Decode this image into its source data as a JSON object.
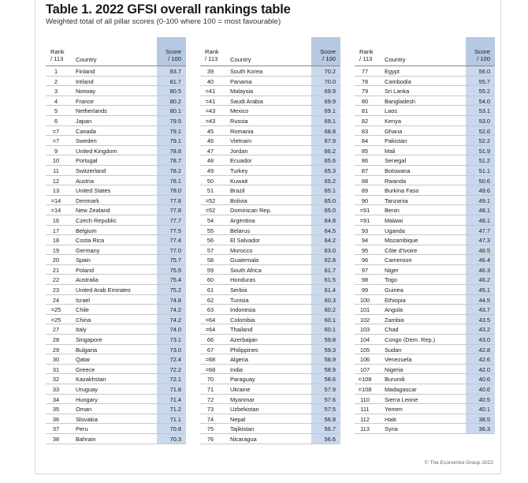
{
  "title": "Table 1. 2022 GFSI overall rankings table",
  "subtitle": "Weighted total of all pillar scores (0-100 where 100 = most favourable)",
  "headers": {
    "rank": "Rank\n/ 113",
    "country": "Country",
    "score": "Score\n/ 100"
  },
  "copyright": "© The Economist Group 2022",
  "columns": [
    [
      [
        "1",
        "Finland",
        "83.7"
      ],
      [
        "2",
        "Ireland",
        "81.7"
      ],
      [
        "3",
        "Norway",
        "80.5"
      ],
      [
        "4",
        "France",
        "80.2"
      ],
      [
        "5",
        "Netherlands",
        "80.1"
      ],
      [
        "6",
        "Japan",
        "79.5"
      ],
      [
        "=7",
        "Canada",
        "79.1"
      ],
      [
        "=7",
        "Sweden",
        "79.1"
      ],
      [
        "9",
        "United Kingdom",
        "78.8"
      ],
      [
        "10",
        "Portugal",
        "78.7"
      ],
      [
        "11",
        "Switzerland",
        "78.2"
      ],
      [
        "12",
        "Austria",
        "78.1"
      ],
      [
        "13",
        "United States",
        "78.0"
      ],
      [
        "=14",
        "Denmark",
        "77.8"
      ],
      [
        "=14",
        "New Zealand",
        "77.8"
      ],
      [
        "16",
        "Czech Republic",
        "77.7"
      ],
      [
        "17",
        "Belgium",
        "77.5"
      ],
      [
        "18",
        "Costa Rica",
        "77.4"
      ],
      [
        "19",
        "Germany",
        "77.0"
      ],
      [
        "20",
        "Spain",
        "75.7"
      ],
      [
        "21",
        "Poland",
        "75.5"
      ],
      [
        "22",
        "Australia",
        "75.4"
      ],
      [
        "23",
        "United Arab Emirates",
        "75.2"
      ],
      [
        "24",
        "Israel",
        "74.8"
      ],
      [
        "=25",
        "Chile",
        "74.2"
      ],
      [
        "=25",
        "China",
        "74.2"
      ],
      [
        "27",
        "Italy",
        "74.0"
      ],
      [
        "28",
        "Singapore",
        "73.1"
      ],
      [
        "29",
        "Bulgaria",
        "73.0"
      ],
      [
        "30",
        "Qatar",
        "72.4"
      ],
      [
        "31",
        "Greece",
        "72.2"
      ],
      [
        "32",
        "Kazakhstan",
        "72.1"
      ],
      [
        "33",
        "Uruguay",
        "71.8"
      ],
      [
        "34",
        "Hungary",
        "71.4"
      ],
      [
        "35",
        "Oman",
        "71.2"
      ],
      [
        "36",
        "Slovakia",
        "71.1"
      ],
      [
        "37",
        "Peru",
        "70.8"
      ],
      [
        "38",
        "Bahrain",
        "70.3"
      ]
    ],
    [
      [
        "39",
        "South Korea",
        "70.2"
      ],
      [
        "40",
        "Panama",
        "70.0"
      ],
      [
        "=41",
        "Malaysia",
        "69.9"
      ],
      [
        "=41",
        "Saudi Arabia",
        "69.9"
      ],
      [
        "=43",
        "Mexico",
        "69.1"
      ],
      [
        "=43",
        "Russia",
        "69.1"
      ],
      [
        "45",
        "Romania",
        "68.8"
      ],
      [
        "46",
        "Vietnam",
        "67.9"
      ],
      [
        "47",
        "Jordan",
        "66.2"
      ],
      [
        "48",
        "Ecuador",
        "65.6"
      ],
      [
        "49",
        "Turkey",
        "65.3"
      ],
      [
        "50",
        "Kuwait",
        "65.2"
      ],
      [
        "51",
        "Brazil",
        "65.1"
      ],
      [
        "=52",
        "Bolivia",
        "65.0"
      ],
      [
        "=52",
        "Dominican Rep.",
        "65.0"
      ],
      [
        "54",
        "Argentina",
        "64.8"
      ],
      [
        "55",
        "Belarus",
        "64.5"
      ],
      [
        "56",
        "El Salvador",
        "64.2"
      ],
      [
        "57",
        "Morocco",
        "63.0"
      ],
      [
        "58",
        "Guatemala",
        "62.8"
      ],
      [
        "59",
        "South Africa",
        "61.7"
      ],
      [
        "60",
        "Honduras",
        "61.5"
      ],
      [
        "61",
        "Serbia",
        "61.4"
      ],
      [
        "62",
        "Tunisia",
        "60.3"
      ],
      [
        "63",
        "Indonesia",
        "60.2"
      ],
      [
        "=64",
        "Colombia",
        "60.1"
      ],
      [
        "=64",
        "Thailand",
        "60.1"
      ],
      [
        "66",
        "Azerbaijan",
        "59.8"
      ],
      [
        "67",
        "Philippines",
        "59.3"
      ],
      [
        "=68",
        "Algeria",
        "58.9"
      ],
      [
        "=68",
        "India",
        "58.9"
      ],
      [
        "70",
        "Paraguay",
        "58.6"
      ],
      [
        "71",
        "Ukraine",
        "57.9"
      ],
      [
        "72",
        "Myanmar",
        "57.6"
      ],
      [
        "73",
        "Uzbekistan",
        "57.5"
      ],
      [
        "74",
        "Nepal",
        "56.9"
      ],
      [
        "75",
        "Tajikistan",
        "56.7"
      ],
      [
        "76",
        "Nicaragua",
        "56.6"
      ]
    ],
    [
      [
        "77",
        "Egypt",
        "56.0"
      ],
      [
        "78",
        "Cambodia",
        "55.7"
      ],
      [
        "79",
        "Sri Lanka",
        "55.2"
      ],
      [
        "80",
        "Bangladesh",
        "54.0"
      ],
      [
        "81",
        "Laos",
        "53.1"
      ],
      [
        "82",
        "Kenya",
        "53.0"
      ],
      [
        "83",
        "Ghana",
        "52.6"
      ],
      [
        "84",
        "Pakistan",
        "52.2"
      ],
      [
        "85",
        "Mali",
        "51.9"
      ],
      [
        "86",
        "Senegal",
        "51.2"
      ],
      [
        "87",
        "Botswana",
        "51.1"
      ],
      [
        "88",
        "Rwanda",
        "50.6"
      ],
      [
        "89",
        "Burkina Faso",
        "49.6"
      ],
      [
        "90",
        "Tanzania",
        "49.1"
      ],
      [
        "=91",
        "Benin",
        "48.1"
      ],
      [
        "=91",
        "Malawi",
        "48.1"
      ],
      [
        "93",
        "Uganda",
        "47.7"
      ],
      [
        "94",
        "Mozambique",
        "47.3"
      ],
      [
        "95",
        "Côte d'Ivoire",
        "46.5"
      ],
      [
        "96",
        "Cameroon",
        "46.4"
      ],
      [
        "97",
        "Niger",
        "46.3"
      ],
      [
        "98",
        "Togo",
        "46.2"
      ],
      [
        "99",
        "Guinea",
        "45.1"
      ],
      [
        "100",
        "Ethiopia",
        "44.5"
      ],
      [
        "101",
        "Angola",
        "43.7"
      ],
      [
        "102",
        "Zambia",
        "43.5"
      ],
      [
        "103",
        "Chad",
        "43.2"
      ],
      [
        "104",
        "Congo (Dem. Rep.)",
        "43.0"
      ],
      [
        "105",
        "Sudan",
        "42.8"
      ],
      [
        "106",
        "Venezuela",
        "42.6"
      ],
      [
        "107",
        "Nigeria",
        "42.0"
      ],
      [
        "=108",
        "Burundi",
        "40.6"
      ],
      [
        "=108",
        "Madagascar",
        "40.6"
      ],
      [
        "110",
        "Sierra Leone",
        "40.5"
      ],
      [
        "111",
        "Yemen",
        "40.1"
      ],
      [
        "112",
        "Haiti",
        "38.5"
      ],
      [
        "113",
        "Syria",
        "36.3"
      ]
    ]
  ]
}
